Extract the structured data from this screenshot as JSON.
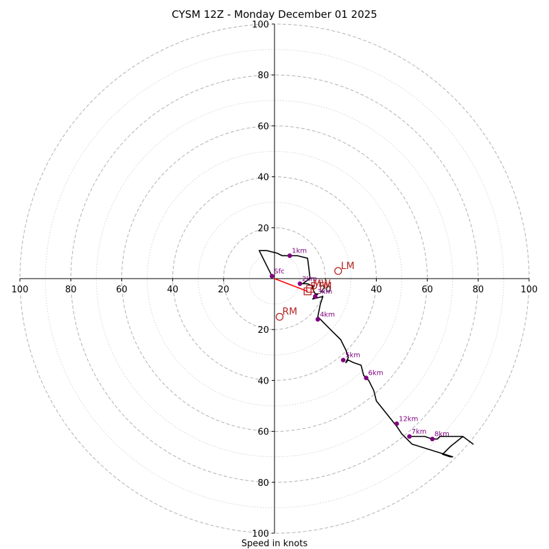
{
  "chart_data": {
    "type": "hodograph",
    "title": "CYSM 12Z - Monday December 01 2025",
    "xlabel": "Speed in knots",
    "units": "knots",
    "range": [
      -100,
      100
    ],
    "major_rings": [
      20,
      40,
      60,
      80,
      100
    ],
    "minor_rings": [
      10,
      30,
      50,
      70,
      90
    ],
    "axis_ticks": {
      "x": [
        {
          "value": -100,
          "label": "100"
        },
        {
          "value": -80,
          "label": "80"
        },
        {
          "value": -60,
          "label": "60"
        },
        {
          "value": -40,
          "label": "40"
        },
        {
          "value": -20,
          "label": "20"
        },
        {
          "value": 20,
          "label": "20"
        },
        {
          "value": 40,
          "label": "40"
        },
        {
          "value": 60,
          "label": "60"
        },
        {
          "value": 80,
          "label": "80"
        },
        {
          "value": 100,
          "label": "100"
        }
      ],
      "y": [
        {
          "value": 100,
          "label": "100"
        },
        {
          "value": 80,
          "label": "80"
        },
        {
          "value": 60,
          "label": "60"
        },
        {
          "value": 40,
          "label": "40"
        },
        {
          "value": 20,
          "label": "20"
        },
        {
          "value": -20,
          "label": "20"
        },
        {
          "value": -40,
          "label": "40"
        },
        {
          "value": -60,
          "label": "60"
        },
        {
          "value": -80,
          "label": "80"
        },
        {
          "value": -100,
          "label": "100"
        }
      ]
    },
    "trace": [
      [
        -1,
        1
      ],
      [
        -6,
        11
      ],
      [
        -3,
        11
      ],
      [
        1,
        10
      ],
      [
        3,
        9
      ],
      [
        6,
        9
      ],
      [
        9,
        9
      ],
      [
        13,
        8
      ],
      [
        14,
        0
      ],
      [
        11,
        -2
      ],
      [
        13,
        -2
      ],
      [
        15,
        -3
      ],
      [
        15,
        -4
      ],
      [
        16,
        -6
      ],
      [
        17,
        -6
      ],
      [
        16,
        -7
      ],
      [
        15,
        -8
      ],
      [
        19,
        -7
      ],
      [
        18,
        -10
      ],
      [
        17,
        -15
      ],
      [
        20,
        -18
      ],
      [
        23,
        -21
      ],
      [
        26,
        -24
      ],
      [
        27,
        -26
      ],
      [
        28,
        -28
      ],
      [
        29,
        -31
      ],
      [
        28,
        -33
      ],
      [
        29,
        -32
      ],
      [
        31,
        -33
      ],
      [
        34,
        -34
      ],
      [
        35,
        -38
      ],
      [
        37,
        -40
      ],
      [
        39,
        -44
      ],
      [
        40,
        -48
      ],
      [
        44,
        -53
      ],
      [
        48,
        -58
      ],
      [
        50,
        -61
      ],
      [
        54,
        -65
      ],
      [
        70,
        -70
      ],
      [
        69,
        -70
      ],
      [
        66,
        -69
      ],
      [
        69,
        -66
      ],
      [
        74,
        -62
      ],
      [
        78,
        -65
      ],
      [
        74,
        -62
      ],
      [
        65,
        -62
      ],
      [
        64,
        -63
      ],
      [
        62,
        -63
      ],
      [
        59,
        -62
      ],
      [
        57,
        -62
      ],
      [
        53,
        -62
      ]
    ],
    "height_markers": [
      {
        "label": "Sfc",
        "u": -1,
        "v": 1
      },
      {
        "label": "1km",
        "u": 6,
        "v": 9
      },
      {
        "label": "2km",
        "u": 10,
        "v": -2
      },
      {
        "label": "3km",
        "u": 16,
        "v": -7
      },
      {
        "label": "4km",
        "u": 17,
        "v": -16
      },
      {
        "label": "5km",
        "u": 27,
        "v": -32
      },
      {
        "label": "6km",
        "u": 36,
        "v": -39
      },
      {
        "label": "12km",
        "u": 48,
        "v": -57
      },
      {
        "label": "7km",
        "u": 53,
        "v": -62
      },
      {
        "label": "8km",
        "u": 62,
        "v": -63
      }
    ],
    "motion_markers": [
      {
        "label": "LM",
        "u": 25,
        "v": 3,
        "shape": "circle"
      },
      {
        "label": "RM",
        "u": 2,
        "v": -15,
        "shape": "circle"
      },
      {
        "label": "MW",
        "u": 14,
        "v": -4,
        "shape": "square"
      },
      {
        "label": "DTM",
        "u": 13,
        "v": -5,
        "shape": "square"
      }
    ],
    "shear_vector": {
      "from": [
        0,
        0
      ],
      "to": [
        13,
        -5
      ]
    },
    "colors": {
      "trace": "#000000",
      "height_marker": "#800080",
      "motion": "#b22222",
      "shear": "#ff0000",
      "major_grid": "#b0b0b0",
      "minor_grid": "#d3d3d3"
    }
  }
}
